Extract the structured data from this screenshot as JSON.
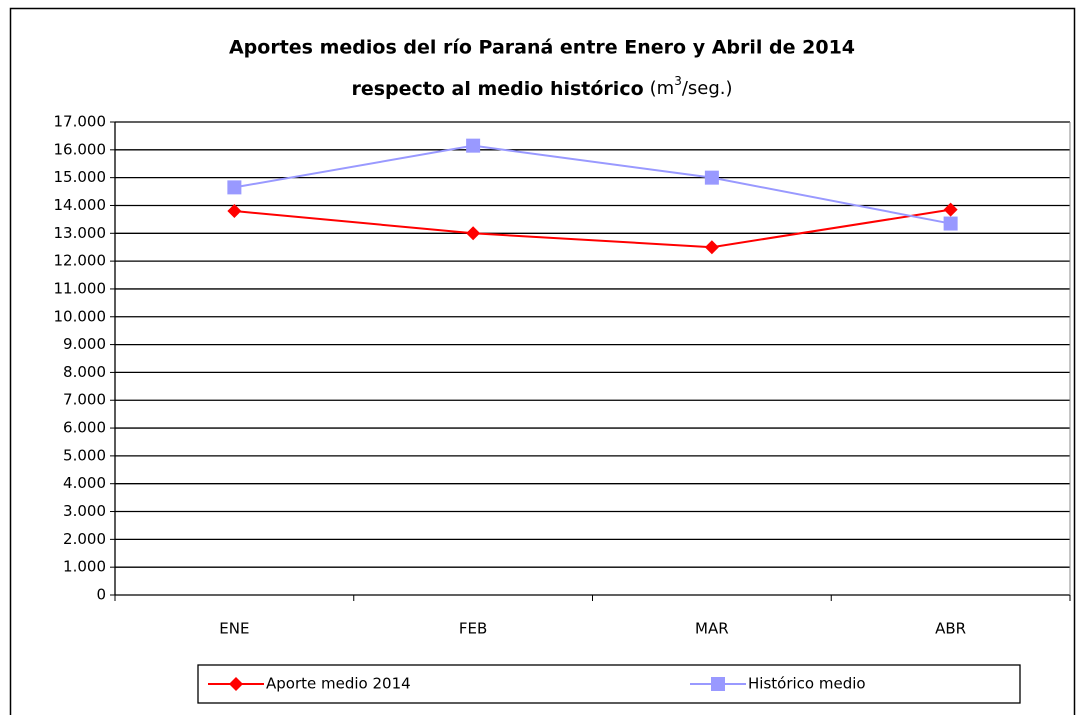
{
  "chart_data": {
    "type": "line",
    "title": "Aportes medios del río Paraná entre Enero y Abril de 2014",
    "subtitle": "respecto al medio histórico",
    "unit": [
      "(m",
      "3",
      "/seg.)"
    ],
    "categories": [
      "ENE",
      "FEB",
      "MAR",
      "ABR"
    ],
    "series": [
      {
        "name": "Aporte medio 2014",
        "color": "#ff0000",
        "marker": "diamond",
        "values": [
          13800,
          13000,
          12500,
          13850
        ]
      },
      {
        "name": "Histórico medio",
        "color": "#9999ff",
        "marker": "square",
        "values": [
          14650,
          16150,
          15000,
          13350
        ]
      }
    ],
    "ylim": [
      0,
      17000
    ],
    "yticks": [
      0,
      {
        "value": 1000,
        "label": "1.000"
      },
      {
        "value": 2000,
        "label": "2.000"
      },
      {
        "value": 3000,
        "label": "3.000"
      },
      {
        "value": 4000,
        "label": "4.000"
      },
      {
        "value": 5000,
        "label": "5.000"
      },
      {
        "value": 6000,
        "label": "6.000"
      },
      {
        "value": 7000,
        "label": "7.000"
      },
      {
        "value": 8000,
        "label": "8.000"
      },
      {
        "value": 9000,
        "label": "9.000"
      },
      {
        "value": 10000,
        "label": "10.000"
      },
      {
        "value": 11000,
        "label": "11.000"
      },
      {
        "value": 12000,
        "label": "12.000"
      },
      {
        "value": 13000,
        "label": "13.000"
      },
      {
        "value": 14000,
        "label": "14.000"
      },
      {
        "value": 15000,
        "label": "15.000"
      },
      {
        "value": 16000,
        "label": "16.000"
      },
      {
        "value": 17000,
        "label": "17.000"
      }
    ],
    "grid": true,
    "legend": "bottom"
  }
}
